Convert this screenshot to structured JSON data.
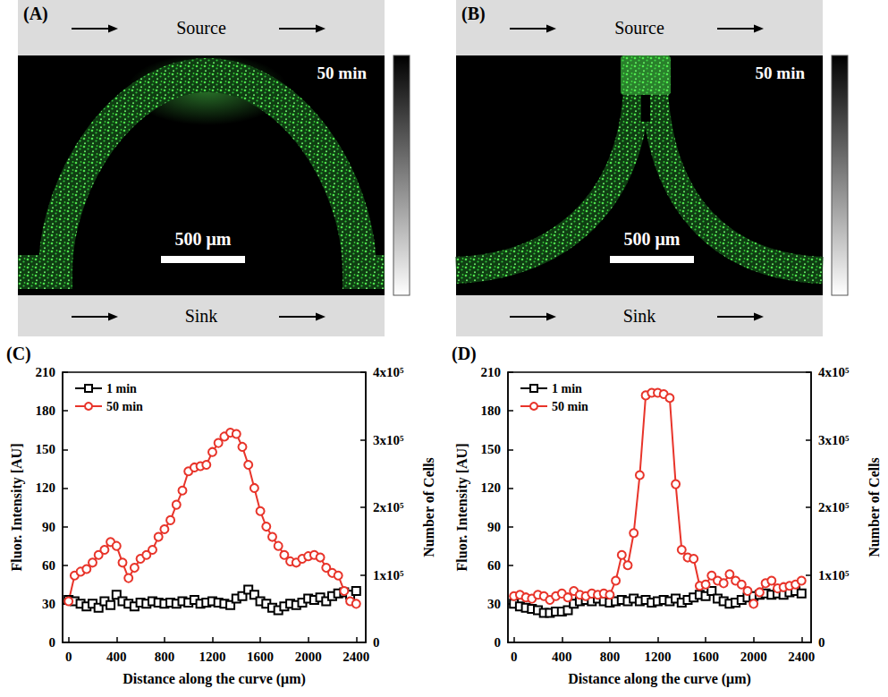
{
  "images": [
    {
      "panel": "(A)",
      "source": "Source",
      "sink": "Sink",
      "time": "50 min",
      "scale_bar": "500 μm",
      "shape": "arch"
    },
    {
      "panel": "(B)",
      "source": "Source",
      "sink": "Sink",
      "time": "50 min",
      "scale_bar": "500 μm",
      "shape": "cusp"
    }
  ],
  "chart_data": [
    {
      "type": "line",
      "panel": "(C)",
      "xlabel": "Distance along the curve (μm)",
      "ylabel": "Fluor. Intensity [AU]",
      "y2label": "Number of Cells",
      "x": [
        0,
        50,
        100,
        150,
        200,
        250,
        300,
        350,
        400,
        450,
        500,
        550,
        600,
        650,
        700,
        750,
        800,
        850,
        900,
        950,
        1000,
        1050,
        1100,
        1150,
        1200,
        1250,
        1300,
        1350,
        1400,
        1450,
        1500,
        1550,
        1600,
        1650,
        1700,
        1750,
        1800,
        1850,
        1900,
        1950,
        2000,
        2050,
        2100,
        2150,
        2200,
        2250,
        2300,
        2350,
        2400
      ],
      "series": [
        {
          "name": "1 min",
          "color": "#000000",
          "marker": "square",
          "line_style": "solid",
          "values": [
            33,
            32,
            30,
            28,
            30,
            27,
            32,
            29,
            37,
            32,
            30,
            28,
            31,
            30,
            32,
            31,
            30,
            31,
            30,
            32,
            31,
            33,
            30,
            31,
            32,
            31,
            30,
            29,
            34,
            36,
            41,
            37,
            32,
            30,
            27,
            25,
            28,
            30,
            29,
            31,
            34,
            33,
            35,
            32,
            36,
            38,
            39,
            37,
            40
          ]
        },
        {
          "name": "50 min",
          "color": "#e8342a",
          "marker": "circle",
          "line_style": "solid",
          "values": [
            32,
            52,
            55,
            57,
            62,
            68,
            72,
            78,
            75,
            62,
            50,
            58,
            65,
            68,
            72,
            82,
            88,
            95,
            107,
            118,
            133,
            136,
            137,
            138,
            148,
            155,
            160,
            163,
            162,
            152,
            138,
            120,
            102,
            90,
            82,
            75,
            68,
            63,
            62,
            65,
            67,
            68,
            66,
            58,
            54,
            52,
            40,
            32,
            30
          ]
        }
      ],
      "xlim": [
        -50,
        2480
      ],
      "xticks": [
        0,
        400,
        800,
        1200,
        1600,
        2000,
        2400
      ],
      "ylim": [
        0,
        210
      ],
      "yticks": [
        0,
        30,
        60,
        90,
        120,
        150,
        180,
        210
      ],
      "y2lim": [
        0,
        400000
      ],
      "y2ticks": [
        0,
        {
          "value": 100000,
          "label": "1x10⁵"
        },
        {
          "value": 200000,
          "label": "2x10⁵"
        },
        {
          "value": 300000,
          "label": "3x10⁵"
        },
        {
          "value": 400000,
          "label": "4x10⁵"
        }
      ],
      "grid": false,
      "legend": "upper left"
    },
    {
      "type": "line",
      "panel": "(D)",
      "xlabel": "Distance along the curve (μm)",
      "ylabel": "Fluor. Intensity [AU]",
      "y2label": "Number of Cells",
      "x": [
        0,
        50,
        100,
        150,
        200,
        250,
        300,
        350,
        400,
        450,
        500,
        550,
        600,
        650,
        700,
        750,
        800,
        850,
        900,
        950,
        1000,
        1050,
        1100,
        1150,
        1200,
        1250,
        1300,
        1350,
        1400,
        1450,
        1500,
        1550,
        1600,
        1650,
        1700,
        1750,
        1800,
        1850,
        1900,
        1950,
        2000,
        2050,
        2100,
        2150,
        2200,
        2250,
        2300,
        2350,
        2400
      ],
      "series": [
        {
          "name": "1 min",
          "color": "#000000",
          "marker": "square",
          "line_style": "solid",
          "values": [
            30,
            28,
            27,
            26,
            25,
            23,
            23,
            24,
            24,
            25,
            30,
            32,
            33,
            32,
            34,
            32,
            31,
            32,
            33,
            32,
            34,
            32,
            33,
            31,
            32,
            33,
            32,
            34,
            31,
            33,
            35,
            37,
            36,
            40,
            34,
            32,
            30,
            31,
            33,
            35,
            36,
            37,
            38,
            37,
            38,
            37,
            39,
            40,
            38
          ]
        },
        {
          "name": "50 min",
          "color": "#e8342a",
          "marker": "circle",
          "line_style": "solid",
          "values": [
            36,
            37,
            35,
            34,
            37,
            36,
            33,
            36,
            38,
            35,
            40,
            37,
            36,
            38,
            37,
            38,
            37,
            48,
            68,
            60,
            85,
            130,
            192,
            194,
            194,
            193,
            190,
            123,
            72,
            66,
            65,
            44,
            45,
            52,
            48,
            46,
            53,
            48,
            45,
            40,
            30,
            39,
            46,
            48,
            42,
            43,
            44,
            45,
            48
          ]
        }
      ],
      "xlim": [
        -50,
        2480
      ],
      "xticks": [
        0,
        400,
        800,
        1200,
        1600,
        2000,
        2400
      ],
      "ylim": [
        0,
        210
      ],
      "yticks": [
        0,
        30,
        60,
        90,
        120,
        150,
        180,
        210
      ],
      "y2lim": [
        0,
        400000
      ],
      "y2ticks": [
        0,
        {
          "value": 100000,
          "label": "1x10⁵"
        },
        {
          "value": 200000,
          "label": "2x10⁵"
        },
        {
          "value": 300000,
          "label": "3x10⁵"
        },
        {
          "value": 400000,
          "label": "4x10⁵"
        }
      ],
      "grid": false,
      "legend": "upper left"
    }
  ]
}
